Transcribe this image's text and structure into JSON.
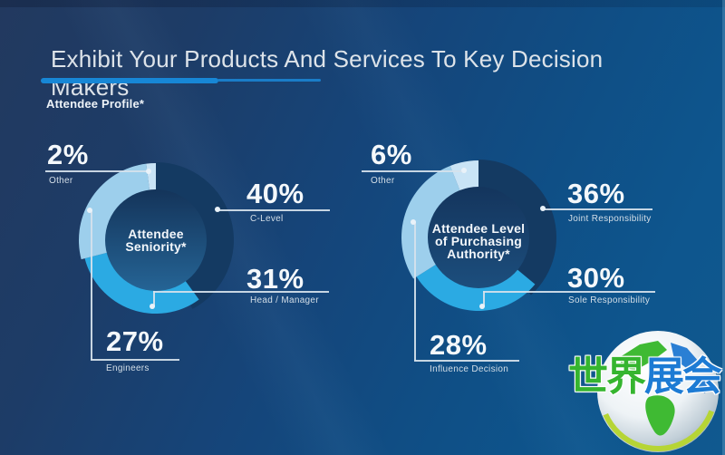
{
  "header": {
    "title": "Exhibit Your Products And Services To Key Decision Makers",
    "subtitle": "Attendee Profile*",
    "accent_color": "#1787d6"
  },
  "chart_data": [
    {
      "type": "pie",
      "variant": "donut",
      "title": "Attendee Seniority*",
      "title_lines": [
        "Attendee",
        "Seniority*"
      ],
      "units": "%",
      "segments": [
        {
          "label": "C-Level",
          "value": 40,
          "pct": "40%",
          "color": "#143a62"
        },
        {
          "label": "Head / Manager",
          "value": 31,
          "pct": "31%",
          "color": "#2baae3"
        },
        {
          "label": "Engineers",
          "value": 27,
          "pct": "27%",
          "color": "#9dcfec"
        },
        {
          "label": "Other",
          "value": 2,
          "pct": "2%",
          "color": "#c9e4f6"
        }
      ]
    },
    {
      "type": "pie",
      "variant": "donut",
      "title": "Attendee Level of Purchasing Authority*",
      "title_lines": [
        "Attendee Level",
        "of Purchasing",
        "Authority*"
      ],
      "units": "%",
      "segments": [
        {
          "label": "Joint Responsibility",
          "value": 36,
          "pct": "36%",
          "color": "#143a62"
        },
        {
          "label": "Sole Responsibility",
          "value": 30,
          "pct": "30%",
          "color": "#2baae3"
        },
        {
          "label": "Influence Decision",
          "value": 28,
          "pct": "28%",
          "color": "#9dcfec"
        },
        {
          "label": "Other",
          "value": 6,
          "pct": "6%",
          "color": "#c9e4f6"
        }
      ]
    }
  ],
  "watermark": {
    "text_green": "世界",
    "text_blue": "展会",
    "green_color": "#35b52f",
    "blue_color": "#1d7bd4"
  }
}
